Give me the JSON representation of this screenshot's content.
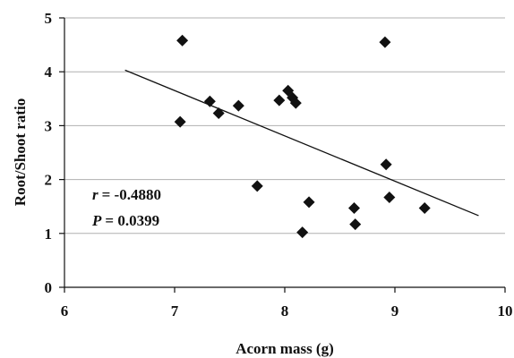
{
  "chart_data": {
    "type": "scatter",
    "title": "",
    "xlabel": "Acorn mass (g)",
    "ylabel": "Root/Shoot ratio",
    "xlim": [
      6,
      10
    ],
    "ylim": [
      0,
      5
    ],
    "x_ticks": [
      "6",
      "7",
      "8",
      "9",
      "10"
    ],
    "y_ticks": [
      "0",
      "1",
      "2",
      "3",
      "4",
      "5"
    ],
    "grid": "horizontal",
    "marker": "diamond",
    "marker_color": "#111111",
    "line_color": "#111111",
    "grid_color": "#b0b0b0",
    "points": [
      {
        "x": 7.07,
        "y": 4.58
      },
      {
        "x": 7.05,
        "y": 3.07
      },
      {
        "x": 7.32,
        "y": 3.45
      },
      {
        "x": 7.4,
        "y": 3.23
      },
      {
        "x": 7.58,
        "y": 3.37
      },
      {
        "x": 7.75,
        "y": 1.88
      },
      {
        "x": 7.95,
        "y": 3.47
      },
      {
        "x": 8.03,
        "y": 3.65
      },
      {
        "x": 8.07,
        "y": 3.52
      },
      {
        "x": 8.1,
        "y": 3.42
      },
      {
        "x": 8.16,
        "y": 1.02
      },
      {
        "x": 8.22,
        "y": 1.58
      },
      {
        "x": 8.63,
        "y": 1.47
      },
      {
        "x": 8.64,
        "y": 1.17
      },
      {
        "x": 8.91,
        "y": 4.55
      },
      {
        "x": 8.92,
        "y": 2.28
      },
      {
        "x": 8.95,
        "y": 1.67
      },
      {
        "x": 9.27,
        "y": 1.47
      }
    ],
    "trendline": {
      "x": [
        6.55,
        9.76
      ],
      "y": [
        4.03,
        1.33
      ]
    },
    "annotations": {
      "r_symbol": "r",
      "r_value": "= -0.4880",
      "p_symbol": "P",
      "p_value": "= 0.0399"
    }
  }
}
